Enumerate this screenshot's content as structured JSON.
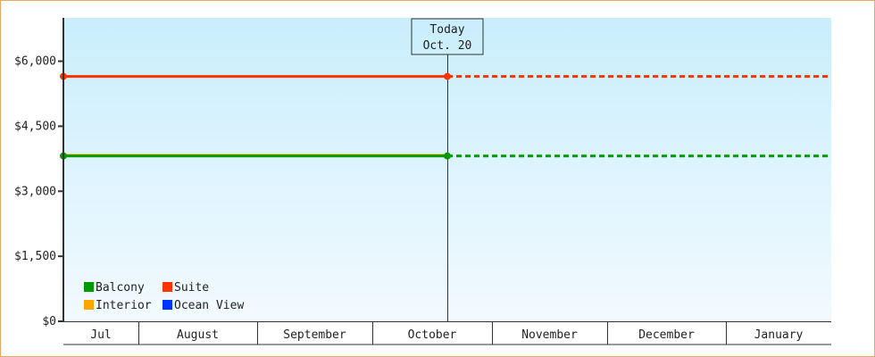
{
  "chart_data": {
    "type": "line",
    "ylim": [
      0,
      7000
    ],
    "y_ticks": [
      0,
      1500,
      3000,
      4500,
      6000
    ],
    "y_tick_labels": [
      "$0",
      "$1,500",
      "$3,000",
      "$4,500",
      "$6,000"
    ],
    "x_categories": [
      "Jul",
      "August",
      "September",
      "October",
      "November",
      "December",
      "January"
    ],
    "today_marker": {
      "line1": "Today",
      "line2": "Oct. 20"
    },
    "grid": false,
    "legend_position": "bottom-left",
    "series": [
      {
        "name": "Balcony",
        "color": "#009900",
        "value": 3815,
        "x": [
          "Jul",
          "Oct. 20"
        ],
        "projected_dotted": true
      },
      {
        "name": "Suite",
        "color": "#ff3300",
        "value": 5650,
        "x": [
          "Jul",
          "Oct. 20"
        ],
        "projected_dotted": true
      },
      {
        "name": "Interior",
        "color": "#ffa500",
        "value": 3830,
        "x": [
          "Jul",
          "Oct. 20"
        ],
        "projected_dotted": false
      },
      {
        "name": "Ocean View",
        "color": "#0033ff",
        "value": null
      }
    ],
    "background_gradient": [
      "#c9eefc",
      "#f2faff"
    ]
  }
}
